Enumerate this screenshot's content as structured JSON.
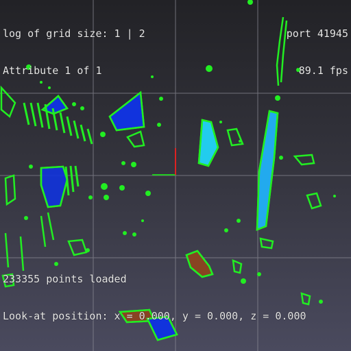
{
  "hud": {
    "grid_size_label": "log of grid size: 1 | 2",
    "attribute_label": "Attribute 1 of 1",
    "port_label": "port 41945",
    "fps_label": "89.1 fps",
    "points_loaded_label": "233355 points loaded",
    "look_at_label": "Look-at position: x = 0.000, y = 0.000, z = 0.000"
  },
  "colors": {
    "grid_line": "#8a8a94",
    "point_green": "#22ee22",
    "point_blue": "#1133dd",
    "point_cyan": "#22ccee",
    "point_orange": "#dd7722",
    "axis_x": "#22cc22",
    "axis_y": "#dd2222"
  }
}
